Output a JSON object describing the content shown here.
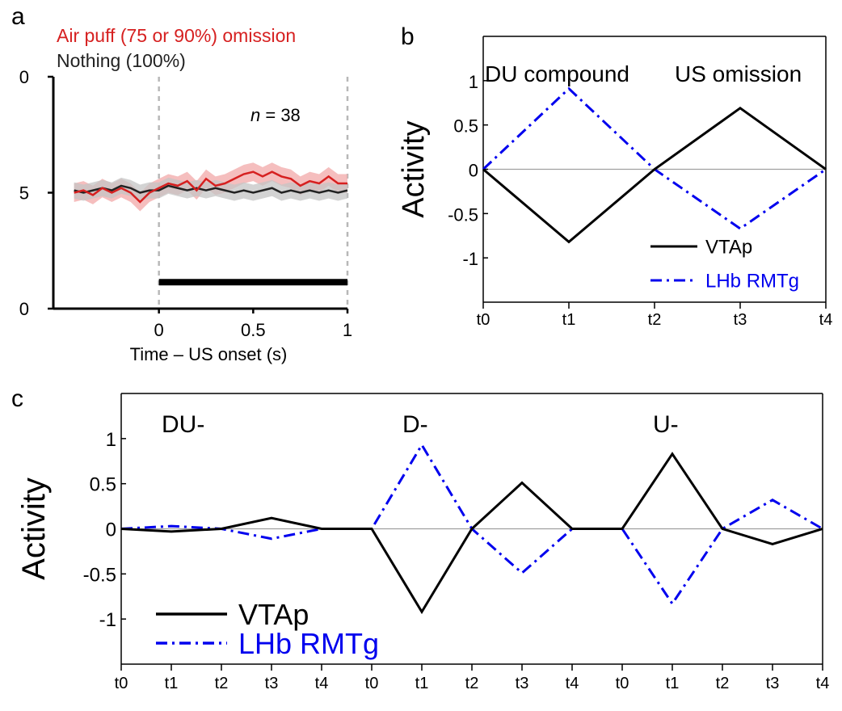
{
  "chart_data": [
    {
      "panel": "a",
      "type": "line",
      "legend": [
        {
          "label": "Air puff (75 or 90%) omission",
          "color": "#d62020"
        },
        {
          "label": "Nothing (100%)",
          "color": "#222222"
        }
      ],
      "annotation": {
        "italic": "n",
        "text": " = 38"
      },
      "xlabel": "Time – US onset (s)",
      "ylabel": "",
      "x_ticks": [
        "0",
        "0.5",
        "1"
      ],
      "y_ticks": [
        "0",
        "5",
        "0"
      ],
      "xlim": [
        -0.5,
        1.0
      ],
      "ylim": [
        0,
        10
      ],
      "grid": false,
      "reference_lines_x": [
        0,
        1
      ],
      "bar": {
        "x_start": 0,
        "x_end": 1,
        "y": 1
      },
      "series": [
        {
          "name": "Air puff (75 or 90%) omission",
          "color": "#d62020",
          "band_color": "#f2a8a8",
          "band_halfwidth": 0.4,
          "x": [
            -0.45,
            -0.4,
            -0.35,
            -0.3,
            -0.25,
            -0.2,
            -0.15,
            -0.1,
            -0.05,
            0.0,
            0.05,
            0.1,
            0.15,
            0.2,
            0.25,
            0.3,
            0.35,
            0.4,
            0.45,
            0.5,
            0.55,
            0.6,
            0.65,
            0.7,
            0.75,
            0.8,
            0.85,
            0.9,
            0.95,
            1.0
          ],
          "y": [
            5.0,
            5.1,
            4.9,
            5.2,
            5.0,
            5.2,
            5.0,
            4.6,
            5.0,
            5.2,
            5.4,
            5.3,
            5.5,
            5.1,
            5.6,
            5.3,
            5.4,
            5.6,
            5.8,
            5.9,
            5.7,
            5.9,
            5.7,
            5.6,
            5.3,
            5.5,
            5.4,
            5.7,
            5.4,
            5.4
          ]
        },
        {
          "name": "Nothing (100%)",
          "color": "#222222",
          "band_color": "#c4c4c4",
          "band_halfwidth": 0.35,
          "x": [
            -0.45,
            -0.4,
            -0.35,
            -0.3,
            -0.25,
            -0.2,
            -0.15,
            -0.1,
            -0.05,
            0.0,
            0.05,
            0.1,
            0.15,
            0.2,
            0.25,
            0.3,
            0.35,
            0.4,
            0.45,
            0.5,
            0.55,
            0.6,
            0.65,
            0.7,
            0.75,
            0.8,
            0.85,
            0.9,
            0.95,
            1.0
          ],
          "y": [
            5.1,
            5.0,
            5.1,
            5.2,
            5.1,
            5.3,
            5.2,
            5.0,
            5.1,
            5.1,
            5.3,
            5.2,
            5.1,
            5.2,
            5.1,
            5.2,
            5.1,
            5.0,
            5.1,
            5.0,
            5.1,
            5.2,
            5.0,
            5.1,
            5.0,
            5.1,
            5.0,
            5.1,
            5.0,
            5.1
          ]
        }
      ]
    },
    {
      "panel": "b",
      "type": "line",
      "annotations": [
        "DU compound",
        "US omission"
      ],
      "ylabel": "Activity",
      "xlabel": "",
      "categories": [
        "t0",
        "t1",
        "t2",
        "t3",
        "t4"
      ],
      "y_ticks": [
        1,
        0.5,
        0,
        -0.5,
        -1
      ],
      "y_tick_labels": [
        "1",
        "0.5",
        "0",
        "-0.5",
        "-1"
      ],
      "ylim": [
        -1.5,
        1.5
      ],
      "zero_line": true,
      "grid": false,
      "legend_position": "bottom-right",
      "series": [
        {
          "name": "VTAp",
          "color": "#000000",
          "style": "solid",
          "values": [
            0,
            -0.82,
            0,
            0.69,
            0
          ]
        },
        {
          "name": "LHb RMTg",
          "color": "#0000ee",
          "style": "dashdot",
          "values": [
            0,
            0.91,
            0,
            -0.67,
            0
          ]
        }
      ]
    },
    {
      "panel": "c",
      "type": "line",
      "annotations": [
        "DU-",
        "D-",
        "U-"
      ],
      "ylabel": "Activity",
      "xlabel": "",
      "categories": [
        "t0",
        "t1",
        "t2",
        "t3",
        "t4",
        "t0",
        "t1",
        "t2",
        "t3",
        "t4",
        "t0",
        "t1",
        "t2",
        "t3",
        "t4"
      ],
      "y_ticks": [
        1,
        0.5,
        0,
        -0.5,
        -1
      ],
      "y_tick_labels": [
        "1",
        "0.5",
        "0",
        "-0.5",
        "-1"
      ],
      "ylim": [
        -1.5,
        1.5
      ],
      "zero_line": true,
      "grid": false,
      "legend_position": "bottom-left",
      "series": [
        {
          "name": "VTAp",
          "color": "#000000",
          "style": "solid",
          "values": [
            0,
            -0.03,
            0,
            0.12,
            0,
            0,
            -0.92,
            0,
            0.51,
            0,
            0,
            0.83,
            0,
            -0.17,
            0
          ]
        },
        {
          "name": "LHb RMTg",
          "color": "#0000ee",
          "style": "dashdot",
          "values": [
            0,
            0.03,
            0,
            -0.11,
            0,
            0,
            0.93,
            0,
            -0.49,
            0,
            0,
            -0.83,
            0,
            0.32,
            0
          ]
        }
      ]
    }
  ]
}
